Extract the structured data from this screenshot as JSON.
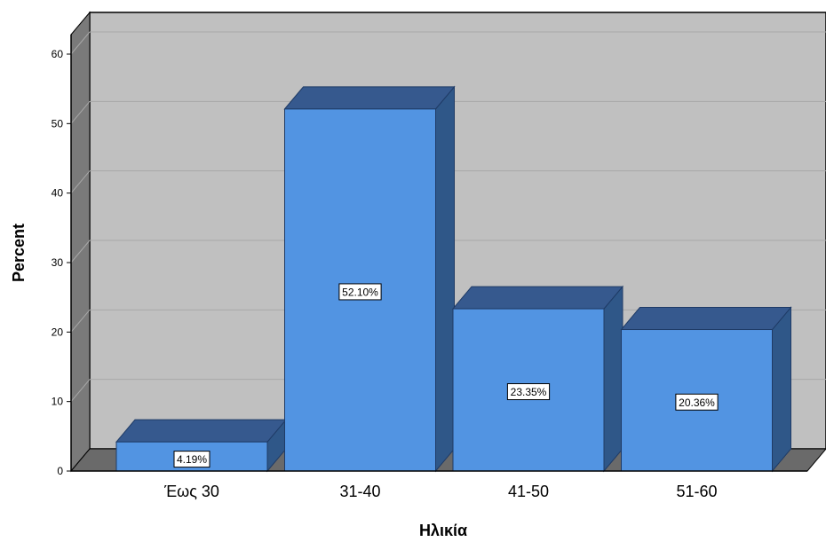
{
  "chart_data": {
    "type": "bar",
    "style": "3d",
    "categories": [
      "Έως 30",
      "31-40",
      "41-50",
      "51-60"
    ],
    "values": [
      4.19,
      52.1,
      23.35,
      20.36
    ],
    "data_labels": [
      "4.19%",
      "52.10%",
      "23.35%",
      "20.36%"
    ],
    "xlabel": "Ηλικία",
    "ylabel": "Percent",
    "ylim": [
      0,
      60
    ],
    "yticks": [
      0,
      10,
      20,
      30,
      40,
      50,
      60
    ],
    "grid": true,
    "legend": "none",
    "colors": {
      "bar_front": "#5294E2",
      "bar_top": "#36598E",
      "bar_side": "#2F5788",
      "bar_edge": "#1F3B66",
      "plot_back": "#C0C0C0",
      "plot_floor": "#6A6A6A",
      "plot_wall": "#7A7A7A",
      "gridline": "#A8A8A8"
    }
  }
}
